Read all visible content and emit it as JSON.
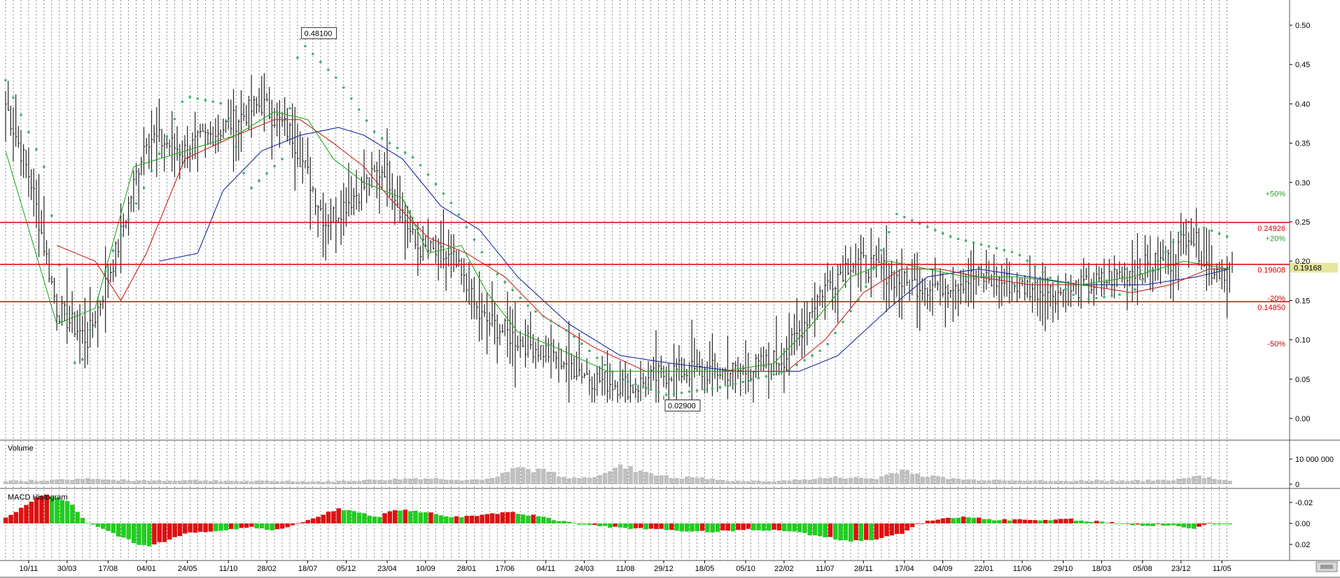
{
  "chart_data": [
    {
      "type": "ohlc",
      "panel": "price",
      "ylim": [
        -0.03,
        0.53
      ],
      "y_ticks": [
        "0.50",
        "0.45",
        "0.40",
        "0.35",
        "0.30",
        "0.25",
        "0.20",
        "0.15",
        "0.10",
        "0.05",
        "0.00"
      ],
      "x_ticks": [
        "10/11",
        "30/03",
        "17/08",
        "04/01",
        "24/05",
        "11/10",
        "28/02",
        "18/07",
        "05/12",
        "23/04",
        "10/09",
        "28/01",
        "17/06",
        "04/11",
        "24/03",
        "11/08",
        "29/12",
        "18/05",
        "05/10",
        "22/02",
        "11/07",
        "28/11",
        "17/04",
        "04/09",
        "22/01",
        "11/06",
        "29/10",
        "18/03",
        "05/08",
        "23/12",
        "11/05"
      ],
      "x_tick_bar_index": [
        9,
        24,
        40,
        55,
        71,
        87,
        102,
        118,
        133,
        149,
        164,
        180,
        195,
        211,
        226,
        242,
        257,
        273,
        289,
        304,
        320,
        335,
        351,
        366,
        382,
        397,
        413,
        428,
        444,
        459,
        475
      ],
      "bar_count": 480,
      "close_anchors": [
        [
          0,
          0.4
        ],
        [
          10,
          0.3
        ],
        [
          20,
          0.14
        ],
        [
          32,
          0.1
        ],
        [
          44,
          0.22
        ],
        [
          55,
          0.36
        ],
        [
          70,
          0.34
        ],
        [
          85,
          0.37
        ],
        [
          100,
          0.4
        ],
        [
          112,
          0.36
        ],
        [
          125,
          0.25
        ],
        [
          135,
          0.28
        ],
        [
          148,
          0.32
        ],
        [
          160,
          0.22
        ],
        [
          175,
          0.2
        ],
        [
          185,
          0.13
        ],
        [
          200,
          0.1
        ],
        [
          215,
          0.08
        ],
        [
          230,
          0.05
        ],
        [
          245,
          0.04
        ],
        [
          260,
          0.06
        ],
        [
          275,
          0.06
        ],
        [
          290,
          0.06
        ],
        [
          305,
          0.08
        ],
        [
          318,
          0.16
        ],
        [
          330,
          0.2
        ],
        [
          342,
          0.19
        ],
        [
          352,
          0.17
        ],
        [
          365,
          0.17
        ],
        [
          380,
          0.18
        ],
        [
          395,
          0.17
        ],
        [
          410,
          0.16
        ],
        [
          425,
          0.17
        ],
        [
          440,
          0.19
        ],
        [
          455,
          0.2
        ],
        [
          462,
          0.24
        ],
        [
          470,
          0.19
        ],
        [
          478,
          0.19
        ]
      ],
      "ma_fast": [
        [
          0,
          0.34
        ],
        [
          20,
          0.12
        ],
        [
          35,
          0.14
        ],
        [
          50,
          0.32
        ],
        [
          70,
          0.34
        ],
        [
          90,
          0.36
        ],
        [
          105,
          0.39
        ],
        [
          118,
          0.38
        ],
        [
          128,
          0.33
        ],
        [
          140,
          0.3
        ],
        [
          155,
          0.28
        ],
        [
          165,
          0.21
        ],
        [
          178,
          0.22
        ],
        [
          188,
          0.16
        ],
        [
          200,
          0.11
        ],
        [
          215,
          0.09
        ],
        [
          235,
          0.06
        ],
        [
          255,
          0.06
        ],
        [
          280,
          0.06
        ],
        [
          300,
          0.07
        ],
        [
          315,
          0.12
        ],
        [
          330,
          0.18
        ],
        [
          345,
          0.2
        ],
        [
          360,
          0.19
        ],
        [
          375,
          0.18
        ],
        [
          395,
          0.18
        ],
        [
          420,
          0.17
        ],
        [
          440,
          0.18
        ],
        [
          460,
          0.2
        ],
        [
          478,
          0.19
        ]
      ],
      "ma_mid": [
        [
          20,
          0.22
        ],
        [
          35,
          0.2
        ],
        [
          45,
          0.15
        ],
        [
          55,
          0.21
        ],
        [
          70,
          0.33
        ],
        [
          90,
          0.36
        ],
        [
          105,
          0.38
        ],
        [
          115,
          0.38
        ],
        [
          128,
          0.35
        ],
        [
          140,
          0.32
        ],
        [
          150,
          0.28
        ],
        [
          165,
          0.23
        ],
        [
          180,
          0.21
        ],
        [
          195,
          0.18
        ],
        [
          210,
          0.13
        ],
        [
          230,
          0.09
        ],
        [
          250,
          0.06
        ],
        [
          280,
          0.06
        ],
        [
          305,
          0.06
        ],
        [
          320,
          0.1
        ],
        [
          335,
          0.16
        ],
        [
          350,
          0.19
        ],
        [
          365,
          0.19
        ],
        [
          380,
          0.18
        ],
        [
          400,
          0.17
        ],
        [
          420,
          0.17
        ],
        [
          440,
          0.16
        ],
        [
          455,
          0.17
        ],
        [
          470,
          0.19
        ],
        [
          478,
          0.19
        ]
      ],
      "ma_slow": [
        [
          60,
          0.2
        ],
        [
          75,
          0.21
        ],
        [
          85,
          0.29
        ],
        [
          100,
          0.34
        ],
        [
          115,
          0.36
        ],
        [
          130,
          0.37
        ],
        [
          140,
          0.36
        ],
        [
          155,
          0.33
        ],
        [
          170,
          0.27
        ],
        [
          185,
          0.24
        ],
        [
          200,
          0.18
        ],
        [
          220,
          0.12
        ],
        [
          240,
          0.08
        ],
        [
          260,
          0.07
        ],
        [
          285,
          0.06
        ],
        [
          310,
          0.06
        ],
        [
          325,
          0.08
        ],
        [
          345,
          0.14
        ],
        [
          360,
          0.18
        ],
        [
          380,
          0.19
        ],
        [
          400,
          0.18
        ],
        [
          420,
          0.17
        ],
        [
          445,
          0.17
        ],
        [
          465,
          0.18
        ],
        [
          478,
          0.19
        ]
      ],
      "sar": [
        [
          0,
          0.43
        ],
        [
          15,
          0.32
        ],
        [
          28,
          0.05
        ],
        [
          40,
          0.2
        ],
        [
          55,
          0.3
        ],
        [
          70,
          0.41
        ],
        [
          85,
          0.4
        ],
        [
          95,
          0.29
        ],
        [
          108,
          0.33
        ],
        [
          115,
          0.48
        ],
        [
          130,
          0.43
        ],
        [
          145,
          0.36
        ],
        [
          160,
          0.33
        ],
        [
          175,
          0.27
        ],
        [
          190,
          0.19
        ],
        [
          205,
          0.14
        ],
        [
          220,
          0.11
        ],
        [
          240,
          0.05
        ],
        [
          258,
          0.03
        ],
        [
          280,
          0.04
        ],
        [
          305,
          0.06
        ],
        [
          320,
          0.09
        ],
        [
          335,
          0.16
        ],
        [
          348,
          0.26
        ],
        [
          370,
          0.23
        ],
        [
          395,
          0.21
        ],
        [
          420,
          0.15
        ],
        [
          440,
          0.16
        ],
        [
          455,
          0.22
        ],
        [
          462,
          0.25
        ],
        [
          478,
          0.23
        ]
      ],
      "hlines": [
        {
          "value": 0.2492,
          "label": "0.24926",
          "color": "#dd0000"
        },
        {
          "value": 0.196,
          "label": "0.19608",
          "color": "#dd0000"
        },
        {
          "value": 0.1485,
          "label": "0.14850",
          "color": "#dd0000"
        }
      ],
      "pct_labels": [
        {
          "label": "+50%",
          "value": 0.286,
          "color": "#2a9d2a"
        },
        {
          "label": "+20%",
          "value": 0.229,
          "color": "#2a9d2a"
        },
        {
          "label": "-20%",
          "value": 0.153,
          "color": "#cc0000"
        },
        {
          "label": "-50%",
          "value": 0.095,
          "color": "#cc0000"
        }
      ],
      "last_price": {
        "label": "0.19168",
        "value": 0.19168
      },
      "callouts": [
        {
          "label": "0.48100",
          "bar": 115,
          "value": 0.481,
          "dir": "up"
        },
        {
          "label": "0.02900",
          "bar": 257,
          "value": 0.029,
          "dir": "down"
        }
      ],
      "colors": {
        "fast": "#22aa22",
        "mid": "#cc2222",
        "slow": "#1a2aa0",
        "sar": "#3bb36b",
        "bars": "#222222"
      }
    },
    {
      "type": "bar",
      "panel": "volume",
      "title": "Volume",
      "y_ticks": [
        "10 000 000",
        "0"
      ],
      "ylim": [
        0,
        13000000
      ],
      "anchors": [
        [
          0,
          1200000
        ],
        [
          10,
          1500000
        ],
        [
          25,
          1800000
        ],
        [
          30,
          2500000
        ],
        [
          40,
          1700000
        ],
        [
          60,
          1500000
        ],
        [
          75,
          1600000
        ],
        [
          95,
          1200000
        ],
        [
          110,
          1300000
        ],
        [
          125,
          1100000
        ],
        [
          140,
          1600000
        ],
        [
          150,
          1900000
        ],
        [
          160,
          2400000
        ],
        [
          170,
          2200000
        ],
        [
          180,
          1700000
        ],
        [
          190,
          2100000
        ],
        [
          200,
          6500000
        ],
        [
          210,
          5500000
        ],
        [
          220,
          2200000
        ],
        [
          230,
          3400000
        ],
        [
          240,
          6800000
        ],
        [
          250,
          5000000
        ],
        [
          260,
          2500000
        ],
        [
          270,
          2700000
        ],
        [
          280,
          1500000
        ],
        [
          295,
          1200000
        ],
        [
          310,
          1700000
        ],
        [
          325,
          2800000
        ],
        [
          340,
          2200000
        ],
        [
          350,
          5800000
        ],
        [
          360,
          3200000
        ],
        [
          375,
          1800000
        ],
        [
          395,
          1700000
        ],
        [
          410,
          1200000
        ],
        [
          425,
          1600000
        ],
        [
          440,
          1500000
        ],
        [
          455,
          1500000
        ],
        [
          465,
          3500000
        ],
        [
          472,
          2300000
        ],
        [
          478,
          1200000
        ]
      ],
      "color": "#c0c0c0"
    },
    {
      "type": "bar",
      "panel": "macd",
      "title": "MACD Histogram",
      "y_ticks": [
        "0.02",
        "0.00",
        "-0.02"
      ],
      "ylim": [
        -0.03,
        0.03
      ],
      "anchors": [
        [
          0,
          -0.005
        ],
        [
          8,
          -0.018
        ],
        [
          15,
          -0.028
        ],
        [
          25,
          -0.02
        ],
        [
          32,
          0.0
        ],
        [
          40,
          0.008
        ],
        [
          50,
          0.018
        ],
        [
          55,
          0.022
        ],
        [
          62,
          0.017
        ],
        [
          70,
          0.01
        ],
        [
          85,
          0.006
        ],
        [
          95,
          0.004
        ],
        [
          105,
          0.006
        ],
        [
          112,
          0.002
        ],
        [
          118,
          -0.003
        ],
        [
          125,
          -0.01
        ],
        [
          130,
          -0.014
        ],
        [
          138,
          -0.01
        ],
        [
          145,
          -0.006
        ],
        [
          150,
          -0.012
        ],
        [
          155,
          -0.013
        ],
        [
          165,
          -0.01
        ],
        [
          175,
          -0.006
        ],
        [
          185,
          -0.007
        ],
        [
          195,
          -0.011
        ],
        [
          205,
          -0.008
        ],
        [
          215,
          -0.003
        ],
        [
          225,
          0.001
        ],
        [
          235,
          0.003
        ],
        [
          245,
          0.005
        ],
        [
          255,
          0.006
        ],
        [
          265,
          0.007
        ],
        [
          275,
          0.008
        ],
        [
          290,
          0.006
        ],
        [
          305,
          0.007
        ],
        [
          320,
          0.013
        ],
        [
          330,
          0.017
        ],
        [
          340,
          0.015
        ],
        [
          350,
          0.009
        ],
        [
          356,
          0.001
        ],
        [
          365,
          -0.005
        ],
        [
          375,
          -0.006
        ],
        [
          385,
          -0.004
        ],
        [
          400,
          -0.003
        ],
        [
          415,
          -0.004
        ],
        [
          430,
          -0.001
        ],
        [
          445,
          0.002
        ],
        [
          455,
          0.001
        ],
        [
          465,
          0.005
        ],
        [
          470,
          0.0
        ],
        [
          478,
          0.0
        ]
      ],
      "colors": {
        "up": "#22cc22",
        "down": "#dd1111"
      }
    }
  ]
}
